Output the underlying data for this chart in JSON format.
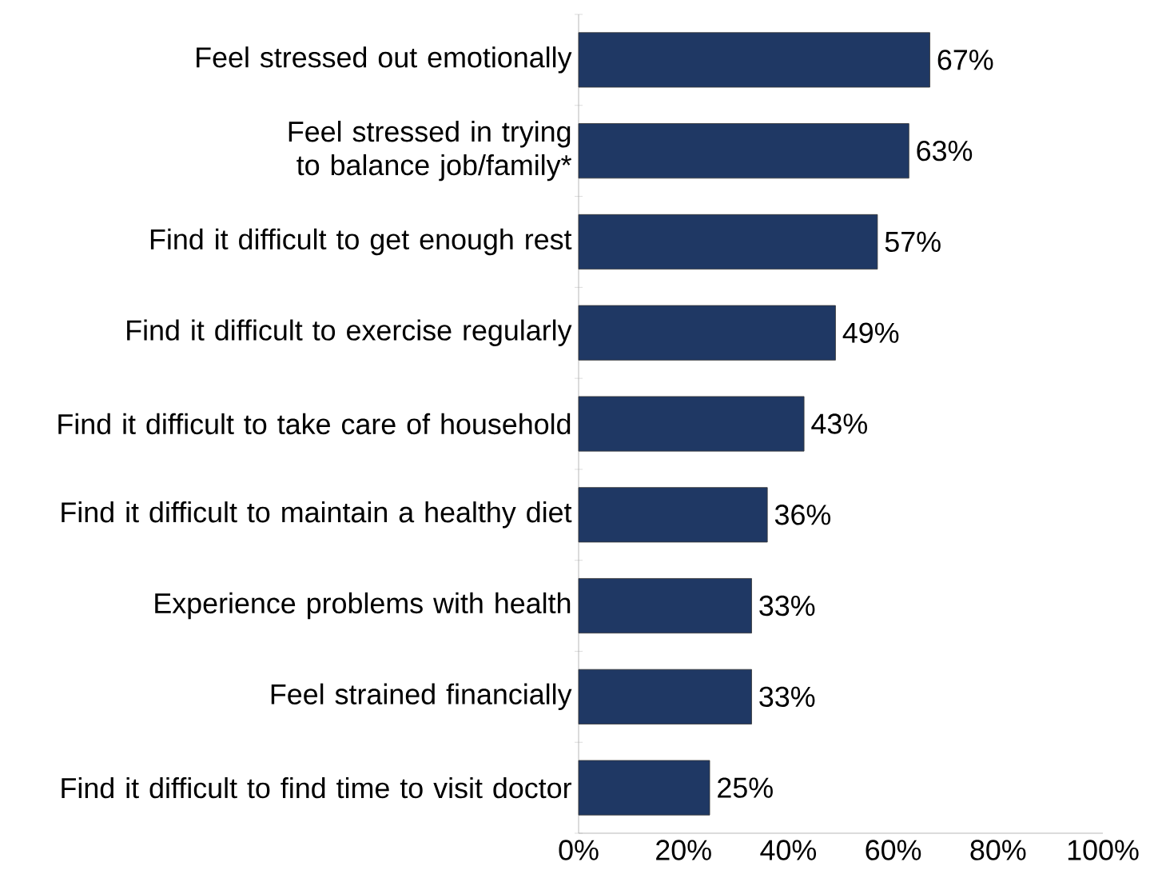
{
  "chart_data": {
    "type": "bar",
    "orientation": "horizontal",
    "categories": [
      "Feel stressed out emotionally",
      "Feel stressed in trying to balance job/family*",
      "Find it difficult to get enough rest",
      "Find it difficult to exercise regularly",
      "Find it difficult to take care of household",
      "Find it difficult to maintain a healthy diet",
      "Experience problems with health",
      "Feel strained financially",
      "Find it difficult to find time to visit doctor"
    ],
    "values": [
      67,
      63,
      57,
      49,
      43,
      36,
      33,
      33,
      25
    ],
    "value_labels": [
      "67%",
      "63%",
      "57%",
      "49%",
      "43%",
      "36%",
      "33%",
      "33%",
      "25%"
    ],
    "color": "#1f3864",
    "xlim": [
      0,
      100
    ],
    "xticks": [
      {
        "value": 0,
        "label": "0%"
      },
      {
        "value": 20,
        "label": "20%"
      },
      {
        "value": 40,
        "label": "40%"
      },
      {
        "value": 60,
        "label": "60%"
      },
      {
        "value": 80,
        "label": "80%"
      },
      {
        "value": 100,
        "label": "100%"
      }
    ],
    "grid": false
  }
}
